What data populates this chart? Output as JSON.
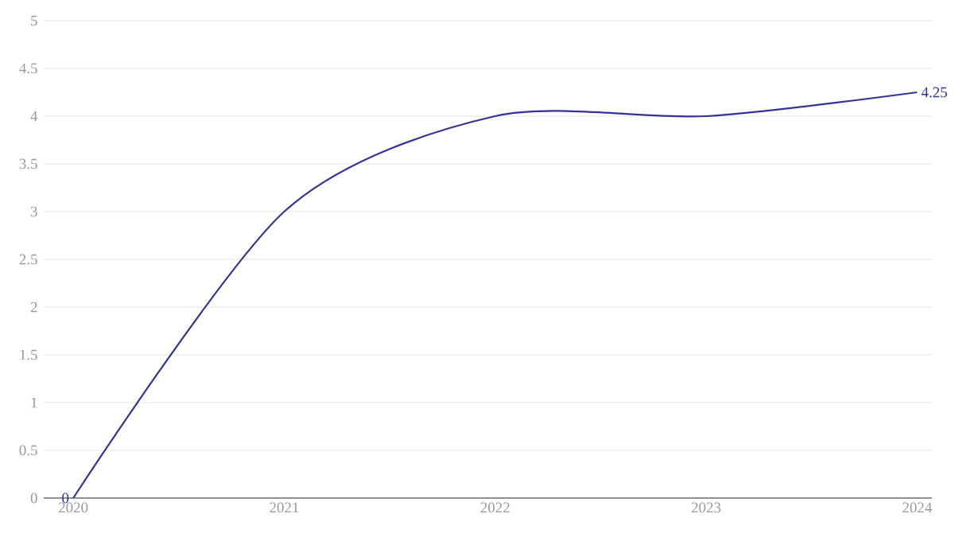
{
  "chart_data": {
    "type": "line",
    "x": [
      2020,
      2021,
      2022,
      2023,
      2024
    ],
    "series": [
      {
        "color": "#333399",
        "values": [
          0,
          3,
          4,
          4,
          4.25
        ],
        "value_labels": [
          "0",
          null,
          null,
          null,
          "4.25"
        ]
      }
    ],
    "xlim": [
      2019.86,
      2024.07
    ],
    "ylim": [
      0,
      5
    ],
    "xticks": [
      2020,
      2021,
      2022,
      2023,
      2024
    ],
    "yticks": [
      0,
      0.5,
      1,
      1.5,
      2,
      2.5,
      3,
      3.5,
      4,
      4.5,
      5
    ],
    "grid": "y"
  }
}
